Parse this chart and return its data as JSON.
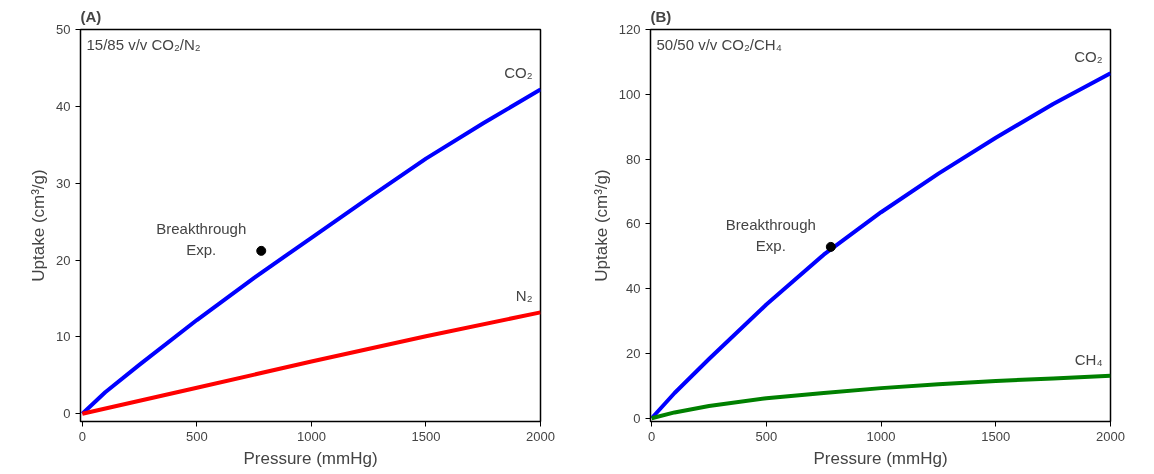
{
  "chart_data": [
    {
      "type": "line",
      "title": "(A)",
      "xlabel": "Pressure (mmHg)",
      "ylabel": "Uptake (cm³/g)",
      "annotations": [
        "15/85 v/v CO₂/N₂"
      ],
      "xlim": [
        -8,
        2000
      ],
      "ylim": [
        -1,
        50
      ],
      "xticks": [
        0,
        500,
        1000,
        1500,
        2000
      ],
      "yticks": [
        0,
        10,
        20,
        30,
        40,
        50
      ],
      "grid": false,
      "legend": false,
      "series": [
        {
          "name": "CO₂",
          "color": "#0000ff",
          "x": [
            0,
            100,
            250,
            500,
            750,
            1000,
            1250,
            1500,
            1750,
            2000
          ],
          "values": [
            0,
            2.8,
            6.4,
            12.2,
            17.7,
            22.9,
            28.1,
            33.2,
            37.8,
            42.2
          ]
        },
        {
          "name": "N₂",
          "color": "#ff0000",
          "x": [
            0,
            500,
            1000,
            1500,
            2000
          ],
          "values": [
            0,
            3.4,
            6.8,
            10.1,
            13.2
          ]
        },
        {
          "name": "Breakthrough Exp.",
          "type": "scatter",
          "color": "#000000",
          "x": [
            781
          ],
          "values": [
            21.2
          ]
        }
      ]
    },
    {
      "type": "line",
      "title": "(B)",
      "xlabel": "Pressure (mmHg)",
      "ylabel": "Uptake (cm³/g)",
      "annotations": [
        "50/50 v/v CO₂/CH₄"
      ],
      "xlim": [
        -5,
        2000
      ],
      "ylim": [
        -1,
        120
      ],
      "xticks": [
        0,
        500,
        1000,
        1500,
        2000
      ],
      "yticks": [
        0,
        20,
        40,
        60,
        80,
        100,
        120
      ],
      "grid": false,
      "legend": false,
      "series": [
        {
          "name": "CO₂",
          "color": "#0000ff",
          "x": [
            0,
            100,
            250,
            500,
            750,
            1000,
            1250,
            1500,
            1750,
            2000
          ],
          "values": [
            0,
            7.8,
            18.3,
            35.1,
            50.5,
            63.6,
            75.5,
            86.6,
            97,
            106.5
          ]
        },
        {
          "name": "CH₄",
          "color": "#008000",
          "x": [
            0,
            100,
            250,
            500,
            750,
            1000,
            1250,
            1500,
            1750,
            2000
          ],
          "values": [
            0,
            1.8,
            3.8,
            6.2,
            7.8,
            9.3,
            10.5,
            11.5,
            12.3,
            13.1
          ]
        },
        {
          "name": "Breakthrough Exp.",
          "type": "scatter",
          "color": "#000000",
          "x": [
            781
          ],
          "values": [
            52.9
          ]
        }
      ]
    }
  ]
}
